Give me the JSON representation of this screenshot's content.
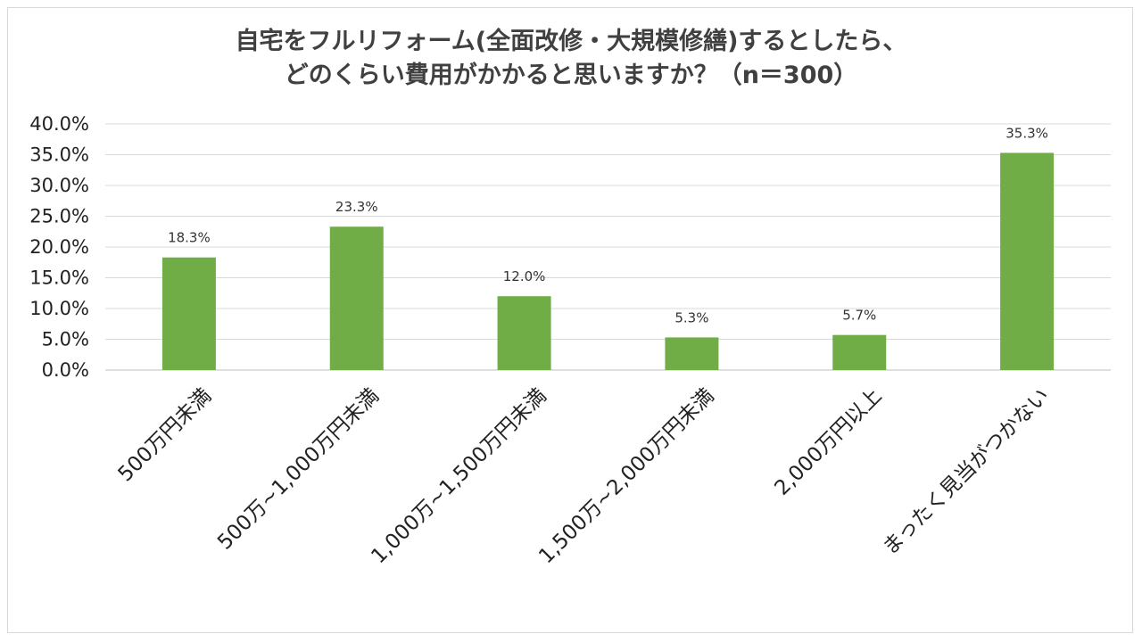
{
  "chart_data": {
    "type": "bar",
    "title_lines": [
      "自宅をフルリフォーム(全面改修・大規模修繕)するとしたら、",
      "どのくらい費用がかかると思いますか？（n＝300）"
    ],
    "categories": [
      "500万円未満",
      "500万~1,000万円未満",
      "1,000万~1,500万円未満",
      "1,500万~2,000万円未満",
      "2,000万円以上",
      "まったく見当がつかない"
    ],
    "values": [
      18.3,
      23.3,
      12.0,
      5.3,
      5.7,
      35.3
    ],
    "data_labels": [
      "18.3%",
      "23.3%",
      "12.0%",
      "5.3%",
      "5.7%",
      "35.3%"
    ],
    "y_ticks": [
      "0.0%",
      "5.0%",
      "10.0%",
      "15.0%",
      "20.0%",
      "25.0%",
      "30.0%",
      "35.0%",
      "40.0%"
    ],
    "ylim": [
      0,
      40
    ],
    "bar_color": "#70ad47",
    "grid": true
  }
}
